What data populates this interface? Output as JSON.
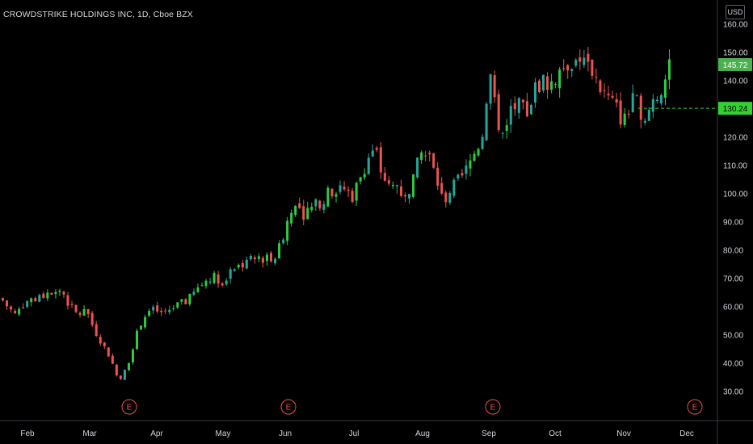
{
  "header": {
    "title": "CROWDSTRIKE HOLDINGS INC, 1D, Cboe BZX",
    "currency": "USD"
  },
  "colors": {
    "up": "#26a69a",
    "up_bright": "#2ecc40",
    "down": "#ef5350",
    "earnings": "#ef5350",
    "last_price_bg": "#4caf50",
    "marker_bg": "#33d033",
    "axis_line": "#363a45"
  },
  "markers": {
    "last_price": "145.72",
    "horizontal_line": "130.24"
  },
  "earnings_label": "E",
  "chart_data": {
    "type": "candlestick",
    "title": "CROWDSTRIKE HOLDINGS INC, 1D, Cboe BZX",
    "x_months": [
      "Feb",
      "Mar",
      "Apr",
      "May",
      "Jun",
      "Jul",
      "Aug",
      "Sep",
      "Oct",
      "Nov",
      "Dec"
    ],
    "y_ticks": [
      "160.00",
      "150.00",
      "140.00",
      "130.00",
      "120.00",
      "110.00",
      "100.00",
      "90.00",
      "80.00",
      "70.00",
      "60.00",
      "50.00",
      "40.00",
      "30.00"
    ],
    "ylim": [
      25,
      163
    ],
    "earnings_markers": [
      "Mar",
      "Jun",
      "Sep",
      "Dec"
    ],
    "horizontal_line": 130.24,
    "last_price": 145.72,
    "close_path": [
      [
        0,
        63
      ],
      [
        8,
        60
      ],
      [
        18,
        57
      ],
      [
        30,
        62
      ],
      [
        45,
        63
      ],
      [
        60,
        65
      ],
      [
        75,
        66
      ],
      [
        85,
        60
      ],
      [
        95,
        57
      ],
      [
        105,
        59
      ],
      [
        115,
        52
      ],
      [
        125,
        47
      ],
      [
        135,
        42
      ],
      [
        145,
        34
      ],
      [
        155,
        38
      ],
      [
        165,
        48
      ],
      [
        175,
        56
      ],
      [
        185,
        59
      ],
      [
        200,
        58
      ],
      [
        215,
        60
      ],
      [
        230,
        62
      ],
      [
        245,
        67
      ],
      [
        260,
        71
      ],
      [
        275,
        69
      ],
      [
        290,
        74
      ],
      [
        305,
        76
      ],
      [
        320,
        77
      ],
      [
        340,
        78
      ],
      [
        350,
        86
      ],
      [
        360,
        96
      ],
      [
        375,
        93
      ],
      [
        390,
        96
      ],
      [
        405,
        100
      ],
      [
        420,
        103
      ],
      [
        435,
        99
      ],
      [
        450,
        110
      ],
      [
        462,
        117
      ],
      [
        470,
        108
      ],
      [
        480,
        102
      ],
      [
        490,
        103
      ],
      [
        500,
        98
      ],
      [
        510,
        106
      ],
      [
        520,
        114
      ],
      [
        530,
        113
      ],
      [
        540,
        104
      ],
      [
        547,
        97
      ],
      [
        555,
        101
      ],
      [
        565,
        104
      ],
      [
        575,
        108
      ],
      [
        585,
        114
      ],
      [
        595,
        120
      ],
      [
        605,
        145
      ],
      [
        612,
        128
      ],
      [
        620,
        121
      ],
      [
        630,
        130
      ],
      [
        640,
        131
      ],
      [
        650,
        128
      ],
      [
        660,
        137
      ],
      [
        670,
        140
      ],
      [
        680,
        139
      ],
      [
        690,
        143
      ],
      [
        700,
        146
      ],
      [
        710,
        148
      ],
      [
        720,
        147
      ],
      [
        730,
        145
      ],
      [
        740,
        138
      ],
      [
        750,
        134
      ],
      [
        760,
        131
      ],
      [
        770,
        125
      ],
      [
        780,
        133
      ],
      [
        790,
        131
      ],
      [
        797,
        124
      ],
      [
        805,
        133
      ],
      [
        815,
        136
      ],
      [
        825,
        143
      ],
      [
        830,
        145.72
      ]
    ],
    "candle_count": 165
  }
}
